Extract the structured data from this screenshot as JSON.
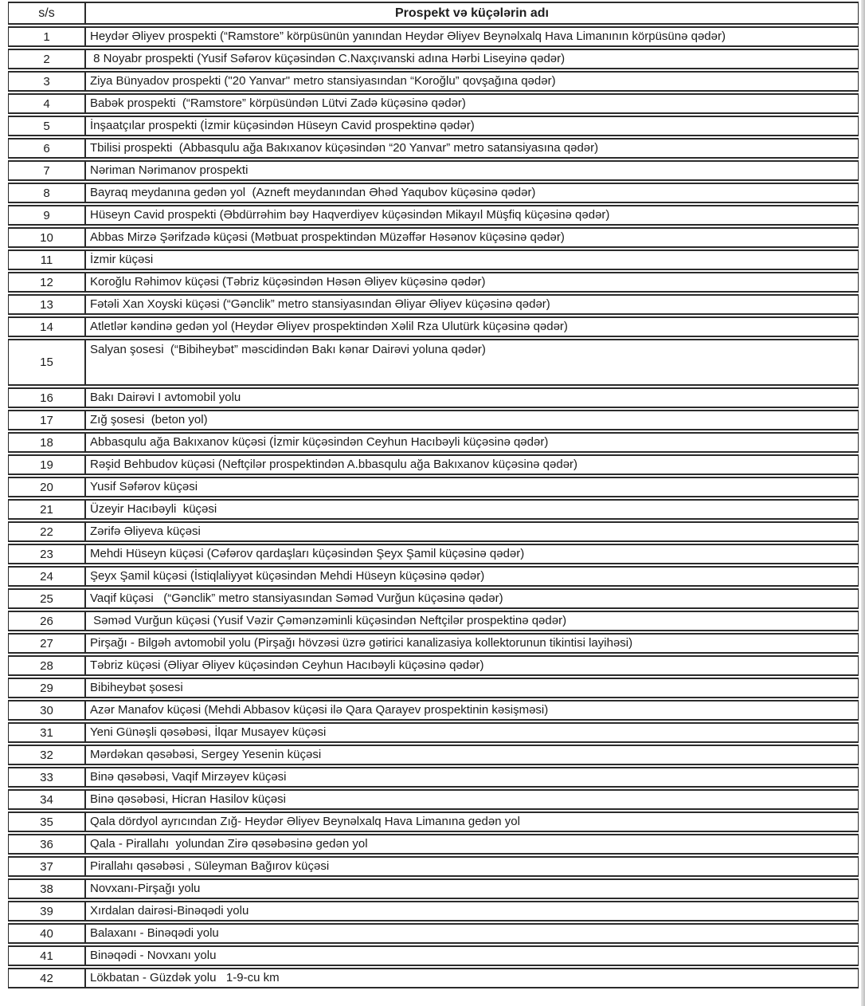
{
  "table": {
    "headers": {
      "num": "s/s",
      "name": "Prospekt və küçələrin adı"
    },
    "rows": [
      {
        "num": "1",
        "name": "Heydər Əliyev prospekti (“Ramstore” körpüsünün yanından Heydər Əliyev Beynəlxalq Hava Limanının körpüsünə qədər)"
      },
      {
        "num": "2",
        "name": " 8 Noyabr prospekti (Yusif Səfərov küçəsindən C.Naxçıvanski adına Hərbi Liseyinə qədər)"
      },
      {
        "num": "3",
        "name": "Ziya Bünyadov prospekti (\"20 Yanvar\" metro stansiyasından “Koroğlu” qovşağına qədər)"
      },
      {
        "num": "4",
        "name": "Babək prospekti  (“Ramstore” körpüsündən Lütvi Zadə küçəsinə qədər)"
      },
      {
        "num": "5",
        "name": "İnşaatçılar prospekti (İzmir küçəsindən Hüseyn Cavid prospektinə qədər)"
      },
      {
        "num": "6",
        "name": "Tbilisi prospekti  (Abbasqulu ağa Bakıxanov küçəsindən “20 Yanvar” metro satansiyasına qədər)"
      },
      {
        "num": "7",
        "name": "Nəriman Nərimanov prospekti"
      },
      {
        "num": "8",
        "name": "Bayraq meydanına gedən yol  (Azneft meydanından Əhəd Yaqubov küçəsinə qədər)"
      },
      {
        "num": "9",
        "name": "Hüseyn Cavid prospekti (Əbdürrəhim bəy Haqverdiyev küçəsindən Mikayıl Müşfiq küçəsinə qədər)"
      },
      {
        "num": "10",
        "name": "Abbas Mirzə Şərifzadə küçəsi (Mətbuat prospektindən Müzəffər Həsənov küçəsinə qədər)"
      },
      {
        "num": "11",
        "name": "İzmir küçəsi"
      },
      {
        "num": "12",
        "name": "Koroğlu Rəhimov küçəsi (Təbriz küçəsindən Həsən Əliyev küçəsinə qədər)"
      },
      {
        "num": "13",
        "name": "Fətəli Xan Xoyski küçəsi (“Gənclik” metro stansiyasından Əliyar Əliyev küçəsinə qədər)"
      },
      {
        "num": "14",
        "name": "Atletlər kəndinə gedən yol (Heydər Əliyev prospektindən Xəlil Rza Ulutürk küçəsinə qədər)"
      },
      {
        "num": "15",
        "name": "Salyan şosesi  (“Bibiheybət” məscidindən Bakı kənar Dairəvi yoluna qədər)",
        "tall": true
      },
      {
        "num": "16",
        "name": "Bakı Dairəvi I avtomobil yolu"
      },
      {
        "num": "17",
        "name": "Zığ şosesi  (beton yol)"
      },
      {
        "num": "18",
        "name": "Abbasqulu ağa Bakıxanov küçəsi (İzmir küçəsindən Ceyhun Hacıbəyli küçəsinə qədər)"
      },
      {
        "num": "19",
        "name": "Rəşid Behbudov küçəsi (Neftçilər prospektindən A.bbasqulu ağa Bakıxanov küçəsinə qədər)"
      },
      {
        "num": "20",
        "name": "Yusif Səfərov küçəsi"
      },
      {
        "num": "21",
        "name": "Üzeyir Hacıbəyli  küçəsi"
      },
      {
        "num": "22",
        "name": "Zərifə Əliyeva küçəsi"
      },
      {
        "num": "23",
        "name": "Mehdi Hüseyn küçəsi (Cəfərov qardaşları küçəsindən Şeyx Şamil küçəsinə qədər)"
      },
      {
        "num": "24",
        "name": "Şeyx Şamil küçəsi (İstiqlaliyyət küçəsindən Mehdi Hüseyn küçəsinə qədər)"
      },
      {
        "num": "25",
        "name": "Vaqif küçəsi   (“Gənclik” metro stansiyasından Səməd Vurğun küçəsinə qədər)"
      },
      {
        "num": "26",
        "name": " Səməd Vurğun küçəsi (Yusif Vəzir Çəmənzəminli küçəsindən Neftçilər prospektinə qədər)"
      },
      {
        "num": "27",
        "name": "Pirşağı - Bilgəh avtomobil yolu (Pirşağı hövzəsi üzrə gətirici kanalizasiya kollektorunun tikintisi layihəsi)"
      },
      {
        "num": "28",
        "name": "Təbriz küçəsi (Əliyar Əliyev küçəsindən Ceyhun Hacıbəyli küçəsinə qədər)"
      },
      {
        "num": "29",
        "name": "Bibiheybət şosesi"
      },
      {
        "num": "30",
        "name": "Azər Manafov küçəsi (Mehdi Abbasov küçəsi ilə Qara Qarayev prospektinin kəsişməsi)"
      },
      {
        "num": "31",
        "name": "Yeni Günəşli qəsəbəsi, İlqar Musayev küçəsi"
      },
      {
        "num": "32",
        "name": "Mərdəkan qəsəbəsi, Sergey Yesenin küçəsi"
      },
      {
        "num": "33",
        "name": "Binə qəsəbəsi, Vaqif Mirzəyev küçəsi"
      },
      {
        "num": "34",
        "name": "Binə qəsəbəsi, Hicran Hasilov küçəsi"
      },
      {
        "num": "35",
        "name": "Qala dördyol ayrıcından Zığ- Heydər Əliyev Beynəlxalq Hava Limanına gedən yol"
      },
      {
        "num": "36",
        "name": "Qala - Pirallahı  yolundan Zirə qəsəbəsinə gedən yol"
      },
      {
        "num": "37",
        "name": "Pirallahı qəsəbəsi , Süleyman Bağırov küçəsi"
      },
      {
        "num": "38",
        "name": "Novxanı-Pirşağı yolu"
      },
      {
        "num": "39",
        "name": "Xırdalan dairəsi-Binəqədi yolu"
      },
      {
        "num": "40",
        "name": "Balaxanı - Binəqədi yolu"
      },
      {
        "num": "41",
        "name": "Binəqədi - Novxanı yolu"
      },
      {
        "num": "42",
        "name": "Lökbatan - Güzdək yolu   1-9-cu km"
      }
    ]
  }
}
